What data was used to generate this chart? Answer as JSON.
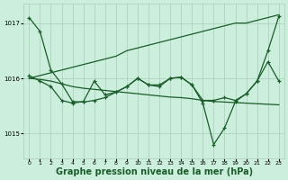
{
  "bg_color": "#cceedd",
  "grid_color": "#aaccbb",
  "line_color": "#1a5c2a",
  "xlabel": "Graphe pression niveau de la mer (hPa)",
  "xlabel_fontsize": 7,
  "yticks": [
    1015,
    1016,
    1017
  ],
  "xticks": [
    0,
    1,
    2,
    3,
    4,
    5,
    6,
    7,
    8,
    9,
    10,
    11,
    12,
    13,
    14,
    15,
    16,
    17,
    18,
    19,
    20,
    21,
    22,
    23
  ],
  "xlim": [
    -0.5,
    23.5
  ],
  "ylim": [
    1014.55,
    1017.35
  ],
  "series": {
    "lineA": [
      1016.0,
      1016.05,
      1016.1,
      1016.15,
      1016.2,
      1016.25,
      1016.3,
      1016.35,
      1016.4,
      1016.5,
      1016.55,
      1016.6,
      1016.65,
      1016.7,
      1016.75,
      1016.8,
      1016.85,
      1016.9,
      1016.95,
      1017.0,
      1017.0,
      1017.05,
      1017.1,
      1017.15
    ],
    "lineB": [
      1017.1,
      1016.85,
      1016.15,
      1015.9,
      1015.58,
      1015.57,
      1015.6,
      1015.65,
      1015.75,
      1015.85,
      1016.0,
      1015.88,
      1015.85,
      1016.0,
      1016.02,
      1015.88,
      1015.6,
      1015.6,
      1015.65,
      1015.6,
      1015.72,
      1015.95,
      1016.5,
      1017.12
    ],
    "lineC": [
      1016.05,
      1015.95,
      1015.85,
      1015.6,
      1015.55,
      1015.58,
      1015.95,
      1015.7,
      1015.75,
      1015.85,
      1016.0,
      1015.88,
      1015.88,
      1016.0,
      1016.02,
      1015.88,
      1015.55,
      1014.8,
      1015.1,
      1015.58,
      1015.72,
      1015.95,
      1016.3,
      1015.95
    ],
    "lineD": [
      1016.0,
      1015.98,
      1015.95,
      1015.9,
      1015.85,
      1015.82,
      1015.8,
      1015.78,
      1015.76,
      1015.74,
      1015.72,
      1015.7,
      1015.68,
      1015.66,
      1015.65,
      1015.63,
      1015.6,
      1015.58,
      1015.57,
      1015.56,
      1015.55,
      1015.54,
      1015.53,
      1015.52
    ]
  }
}
